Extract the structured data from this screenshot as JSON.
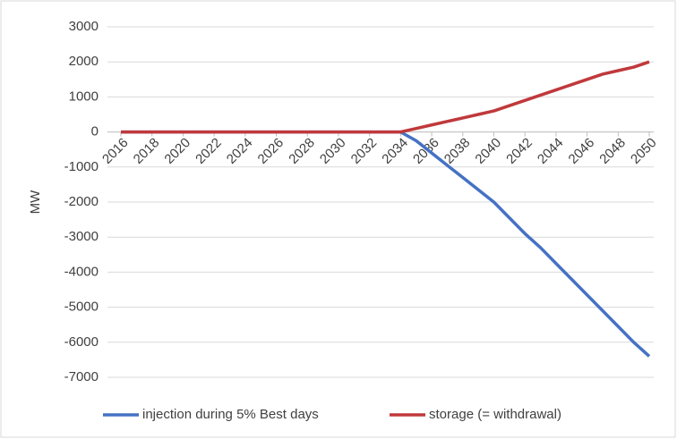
{
  "chart_data": {
    "type": "line",
    "y_label": "MW",
    "x": [
      2016,
      2017,
      2018,
      2019,
      2020,
      2021,
      2022,
      2023,
      2024,
      2025,
      2026,
      2027,
      2028,
      2029,
      2030,
      2031,
      2032,
      2033,
      2034,
      2035,
      2036,
      2037,
      2038,
      2039,
      2040,
      2041,
      2042,
      2043,
      2044,
      2045,
      2046,
      2047,
      2048,
      2049,
      2050
    ],
    "series": [
      {
        "name": "injection during 5% Best days",
        "color": "#4472c4",
        "values": [
          0,
          0,
          0,
          0,
          0,
          0,
          0,
          0,
          0,
          0,
          0,
          0,
          0,
          0,
          0,
          0,
          0,
          0,
          0,
          -250,
          -600,
          -950,
          -1300,
          -1650,
          -2000,
          -2450,
          -2900,
          -3300,
          -3750,
          -4200,
          -4650,
          -5100,
          -5550,
          -6000,
          -6400
        ]
      },
      {
        "name": "storage (= withdrawal)",
        "color": "#c0393b",
        "values": [
          0,
          0,
          0,
          0,
          0,
          0,
          0,
          0,
          0,
          0,
          0,
          0,
          0,
          0,
          0,
          0,
          0,
          0,
          0,
          100,
          200,
          300,
          400,
          500,
          600,
          750,
          900,
          1050,
          1200,
          1350,
          1500,
          1650,
          1750,
          1850,
          2000
        ]
      }
    ],
    "xlim": [
      2016,
      2050
    ],
    "xticks": [
      2016,
      2018,
      2020,
      2022,
      2024,
      2026,
      2028,
      2030,
      2032,
      2034,
      2036,
      2038,
      2040,
      2042,
      2044,
      2046,
      2048,
      2050
    ],
    "ylim": [
      -7000,
      3000
    ],
    "yticks": [
      3000,
      2000,
      1000,
      0,
      -1000,
      -2000,
      -3000,
      -4000,
      -5000,
      -6000,
      -7000
    ],
    "grid": true,
    "legend": "bottom"
  }
}
